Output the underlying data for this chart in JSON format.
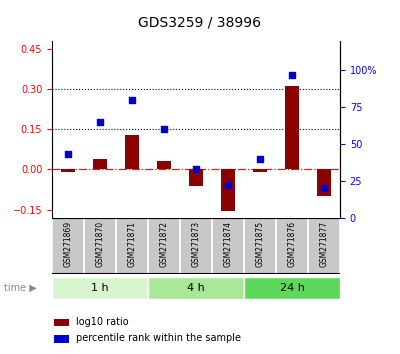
{
  "title": "GDS3259 / 38996",
  "samples": [
    "GSM271869",
    "GSM271870",
    "GSM271871",
    "GSM271872",
    "GSM271873",
    "GSM271874",
    "GSM271875",
    "GSM271876",
    "GSM271877"
  ],
  "log10_ratio": [
    -0.01,
    0.04,
    0.13,
    0.03,
    -0.06,
    -0.155,
    -0.01,
    0.31,
    -0.1
  ],
  "percentile_rank": [
    43,
    65,
    80,
    60,
    33,
    22,
    40,
    97,
    20
  ],
  "time_groups": [
    {
      "label": "1 h",
      "indices": [
        0,
        1,
        2
      ],
      "color": "#d8f5d0"
    },
    {
      "label": "4 h",
      "indices": [
        3,
        4,
        5
      ],
      "color": "#a8e896"
    },
    {
      "label": "24 h",
      "indices": [
        6,
        7,
        8
      ],
      "color": "#5cd85c"
    }
  ],
  "ylim_left": [
    -0.18,
    0.48
  ],
  "ylim_right": [
    0,
    120
  ],
  "yticks_left": [
    -0.15,
    0.0,
    0.15,
    0.3,
    0.45
  ],
  "yticks_right": [
    0,
    25,
    50,
    75,
    100
  ],
  "hlines": [
    0.15,
    0.3
  ],
  "bar_color": "#8B0000",
  "scatter_color": "#0000CC",
  "zero_line_color": "#CC2222",
  "background_color": "#ffffff"
}
